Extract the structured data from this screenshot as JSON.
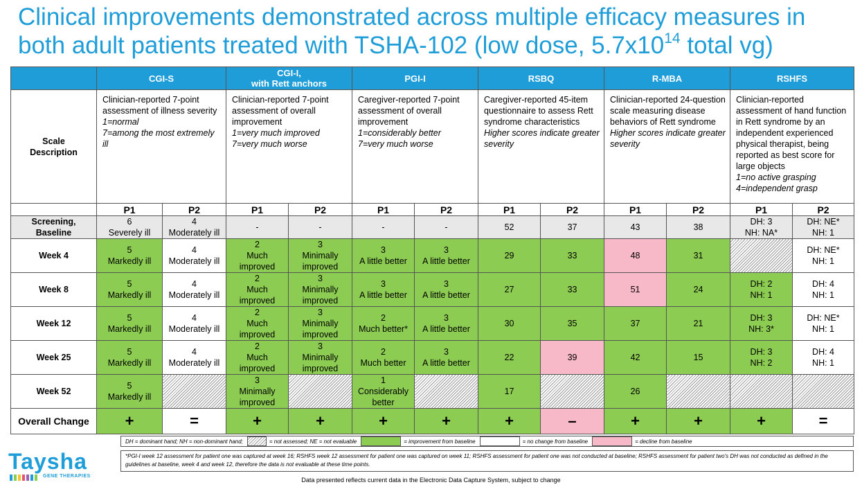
{
  "title": {
    "text_before": "Clinical improvements demonstrated across multiple efficacy measures in both adult patients treated with TSHA-102 (low dose, 5.7x10",
    "sup": "14",
    "text_after": " total vg)"
  },
  "columns": [
    "CGI-S",
    "CGI-I,",
    "with Rett anchors",
    "PGI-I",
    "RSBQ",
    "R-MBA",
    "RSHFS"
  ],
  "scale_label_line1": "Scale",
  "scale_label_line2": "Description",
  "descriptions": {
    "cgis": {
      "lines": [
        "Clinician-reported 7-point assessment of illness severity"
      ],
      "italic": [
        "1=normal",
        "7=among the most extremely ill"
      ]
    },
    "cgii": {
      "lines": [
        "Clinician-reported 7-point assessment of overall improvement"
      ],
      "italic": [
        "1=very much improved",
        "7=very much worse"
      ]
    },
    "pgii": {
      "lines": [
        "Caregiver-reported 7-point assessment of overall improvement"
      ],
      "italic": [
        "1=considerably better",
        "7=very much worse"
      ]
    },
    "rsbq": {
      "lines": [
        "Caregiver-reported 45-item questionnaire to assess Rett syndrome characteristics"
      ],
      "italic": [
        "Higher scores indicate greater severity"
      ]
    },
    "rmba": {
      "lines": [
        "Clinician-reported 24-question scale measuring disease behaviors of Rett syndrome"
      ],
      "italic": [
        "Higher scores indicate greater severity"
      ]
    },
    "rshfs": {
      "lines": [
        "Clinician-reported assessment of hand function in Rett syndrome by an independent experienced physical therapist, being reported as best score for large objects"
      ],
      "italic": [
        "1=no active grasping",
        "4=independent grasp"
      ]
    }
  },
  "patients": [
    "P1",
    "P2"
  ],
  "rows": [
    {
      "label1": "Screening,",
      "label2": "Baseline",
      "cells": [
        {
          "t": "6",
          "u": "Severely ill",
          "c": "b"
        },
        {
          "t": "4",
          "u": "Moderately ill",
          "c": "b"
        },
        {
          "t": "-",
          "u": "",
          "c": "b"
        },
        {
          "t": "-",
          "u": "",
          "c": "b"
        },
        {
          "t": "-",
          "u": "",
          "c": "b"
        },
        {
          "t": "-",
          "u": "",
          "c": "b"
        },
        {
          "t": "52",
          "u": "",
          "c": "b"
        },
        {
          "t": "37",
          "u": "",
          "c": "b"
        },
        {
          "t": "43",
          "u": "",
          "c": "b"
        },
        {
          "t": "38",
          "u": "",
          "c": "b"
        },
        {
          "t": "DH: 3",
          "u": "NH: NA*",
          "c": "b"
        },
        {
          "t": "DH: NE*",
          "u": "NH: 1",
          "c": "b"
        }
      ]
    },
    {
      "label1": "Week 4",
      "label2": "",
      "cells": [
        {
          "t": "5",
          "u": "Markedly ill",
          "c": "g"
        },
        {
          "t": "4",
          "u": "Moderately ill",
          "c": "n"
        },
        {
          "t": "2",
          "u": "Much",
          "v": "improved",
          "c": "g"
        },
        {
          "t": "3",
          "u": "Minimally",
          "v": "improved",
          "c": "g"
        },
        {
          "t": "3",
          "u": "A little better",
          "c": "g"
        },
        {
          "t": "3",
          "u": "A little better",
          "c": "g"
        },
        {
          "t": "29",
          "u": "",
          "c": "g"
        },
        {
          "t": "33",
          "u": "",
          "c": "g"
        },
        {
          "t": "48",
          "u": "",
          "c": "p"
        },
        {
          "t": "31",
          "u": "",
          "c": "g"
        },
        {
          "t": "",
          "u": "",
          "c": "h"
        },
        {
          "t": "DH: NE*",
          "u": "NH: 1",
          "c": "n"
        }
      ]
    },
    {
      "label1": "Week 8",
      "label2": "",
      "cells": [
        {
          "t": "5",
          "u": "Markedly ill",
          "c": "g"
        },
        {
          "t": "4",
          "u": "Moderately ill",
          "c": "n"
        },
        {
          "t": "2",
          "u": "Much",
          "v": "improved",
          "c": "g"
        },
        {
          "t": "3",
          "u": "Minimally",
          "v": "improved",
          "c": "g"
        },
        {
          "t": "3",
          "u": "A little better",
          "c": "g"
        },
        {
          "t": "3",
          "u": "A little better",
          "c": "g"
        },
        {
          "t": "27",
          "u": "",
          "c": "g"
        },
        {
          "t": "33",
          "u": "",
          "c": "g"
        },
        {
          "t": "51",
          "u": "",
          "c": "p"
        },
        {
          "t": "24",
          "u": "",
          "c": "g"
        },
        {
          "t": "DH: 2",
          "u": "NH: 1",
          "c": "g"
        },
        {
          "t": "DH: 4",
          "u": "NH: 1",
          "c": "n"
        }
      ]
    },
    {
      "label1": "Week 12",
      "label2": "",
      "cells": [
        {
          "t": "5",
          "u": "Markedly ill",
          "c": "g"
        },
        {
          "t": "4",
          "u": "Moderately ill",
          "c": "n"
        },
        {
          "t": "2",
          "u": "Much",
          "v": "improved",
          "c": "g"
        },
        {
          "t": "3",
          "u": "Minimally",
          "v": "improved",
          "c": "g"
        },
        {
          "t": "2",
          "u": "Much better*",
          "c": "g"
        },
        {
          "t": "3",
          "u": "A little better",
          "c": "g"
        },
        {
          "t": "30",
          "u": "",
          "c": "g"
        },
        {
          "t": "35",
          "u": "",
          "c": "g"
        },
        {
          "t": "37",
          "u": "",
          "c": "g"
        },
        {
          "t": "21",
          "u": "",
          "c": "g"
        },
        {
          "t": "DH: 3",
          "u": "NH: 3*",
          "c": "g"
        },
        {
          "t": "DH: NE*",
          "u": "NH: 1",
          "c": "n"
        }
      ]
    },
    {
      "label1": "Week 25",
      "label2": "",
      "cells": [
        {
          "t": "5",
          "u": "Markedly ill",
          "c": "g"
        },
        {
          "t": "4",
          "u": "Moderately ill",
          "c": "n"
        },
        {
          "t": "2",
          "u": "Much",
          "v": "improved",
          "c": "g"
        },
        {
          "t": "3",
          "u": "Minimally",
          "v": "improved",
          "c": "g"
        },
        {
          "t": "2",
          "u": "Much better",
          "c": "g"
        },
        {
          "t": "3",
          "u": "A little better",
          "c": "g"
        },
        {
          "t": "22",
          "u": "",
          "c": "g"
        },
        {
          "t": "39",
          "u": "",
          "c": "p"
        },
        {
          "t": "42",
          "u": "",
          "c": "g"
        },
        {
          "t": "15",
          "u": "",
          "c": "g"
        },
        {
          "t": "DH: 3",
          "u": "NH: 2",
          "c": "g"
        },
        {
          "t": "DH: 4",
          "u": "NH: 1",
          "c": "n"
        }
      ]
    },
    {
      "label1": "Week 52",
      "label2": "",
      "cells": [
        {
          "t": "5",
          "u": "Markedly ill",
          "c": "g"
        },
        {
          "t": "",
          "u": "",
          "c": "h"
        },
        {
          "t": "3",
          "u": "Minimally",
          "v": "improved",
          "c": "g"
        },
        {
          "t": "",
          "u": "",
          "c": "h"
        },
        {
          "t": "1",
          "u": "Considerably",
          "v": "better",
          "c": "g"
        },
        {
          "t": "",
          "u": "",
          "c": "h"
        },
        {
          "t": "17",
          "u": "",
          "c": "g"
        },
        {
          "t": "",
          "u": "",
          "c": "h"
        },
        {
          "t": "26",
          "u": "",
          "c": "g"
        },
        {
          "t": "",
          "u": "",
          "c": "h"
        },
        {
          "t": "",
          "u": "",
          "c": "h"
        },
        {
          "t": "",
          "u": "",
          "c": "h"
        }
      ]
    }
  ],
  "overall": {
    "label": "Overall Change",
    "cells": [
      {
        "t": "+",
        "c": "g"
      },
      {
        "t": "=",
        "c": "n"
      },
      {
        "t": "+",
        "c": "g"
      },
      {
        "t": "+",
        "c": "g"
      },
      {
        "t": "+",
        "c": "g"
      },
      {
        "t": "+",
        "c": "g"
      },
      {
        "t": "+",
        "c": "g"
      },
      {
        "t": "–",
        "c": "p"
      },
      {
        "t": "+",
        "c": "g"
      },
      {
        "t": "+",
        "c": "g"
      },
      {
        "t": "+",
        "c": "g"
      },
      {
        "t": "=",
        "c": "n"
      }
    ]
  },
  "legend": {
    "abbrev": "DH = dominant hand; NH = non-dominant hand;",
    "hatch": "= not assessed; NE = not evaluable",
    "green": "= improvement from baseline",
    "white": "= no change from baseline",
    "pink": "= decline from baseline"
  },
  "footnote": "*PGI-I week 12 assessment for patient one was captured at week 16; RSHFS week 12 assessment for patient one was captured on week 11; RSHFS assessment for patient one was not conducted at baseline; RSHFS assessment for patient two's DH was not conducted as defined in the guidelines at baseline, week 4 and week 12, therefore the data is not evaluable at these time points.",
  "bottom_note": "Data presented reflects current data in the Electronic Data Capture System, subject to change",
  "logo": {
    "word": "Taysha",
    "sub": "GENE THERAPIES"
  },
  "colors": {
    "accent": "#1e9dd8",
    "improve": "#8ccc52",
    "decline": "#f7b8c8",
    "baseline": "#e8e8e8"
  }
}
